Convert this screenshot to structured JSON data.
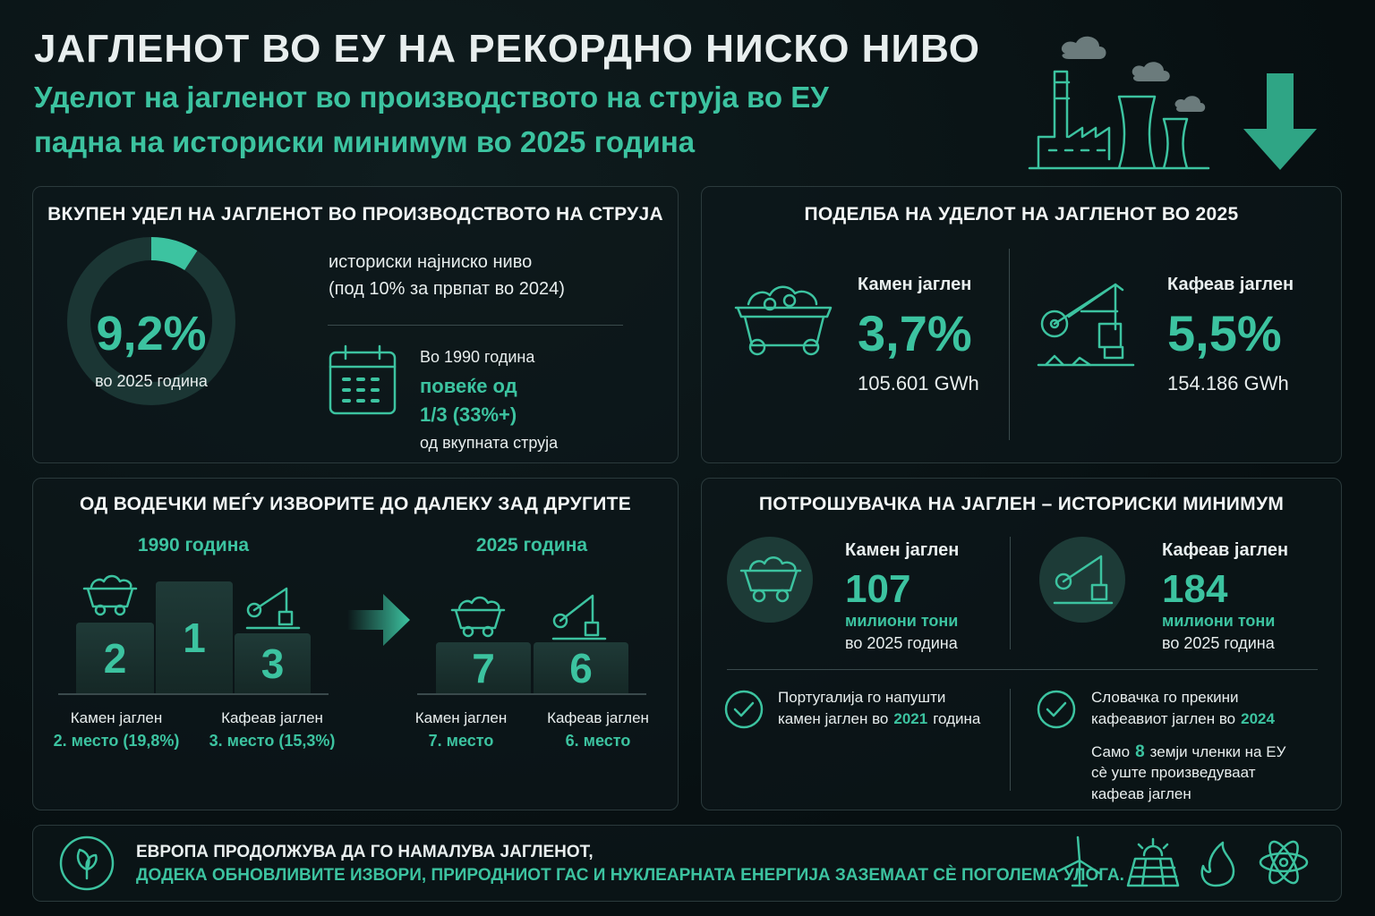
{
  "header": {
    "title": "ЈАГЛЕНОТ ВО ЕУ НА РЕКОРДНО НИСКО НИВО",
    "subtitle_line1": "Уделот на јагленот во производството на струја во ЕУ",
    "subtitle_line2": "падна на историски минимум во 2025 година"
  },
  "total_share": {
    "title": "ВКУПЕН УДЕЛ НА ЈАГЛЕНОТ ВО ПРОИЗВОДСТВОТО НА СТРУЈА",
    "donut": {
      "value": 9.2,
      "label": "9,2%",
      "caption": "во 2025 година"
    },
    "note_line1": "историски најниско ниво",
    "note_line2": "(под 10% за првпат во 2024)",
    "history_line1": "Во 1990 година",
    "history_highlight1": "повеќе од",
    "history_highlight2": "1/3 (33%+)",
    "history_line3": "од вкупната струја"
  },
  "split": {
    "title": "ПОДЕЛБА НА УДЕЛОТ НА ЈАГЛЕНОТ ВО 2025",
    "items": [
      {
        "name": "Камен јаглен",
        "share": "3,7%",
        "energy": "105.601 GWh"
      },
      {
        "name": "Кафеав јаглен",
        "share": "5,5%",
        "energy": "154.186 GWh"
      }
    ]
  },
  "ranking": {
    "title": "ОД ВОДЕЧКИ МЕЃУ ИЗВОРИТЕ ДО ДАЛЕКУ ЗАД ДРУГИТЕ",
    "years": [
      {
        "label": "1990 година",
        "places": [
          "2",
          "1",
          "3"
        ],
        "items": [
          {
            "name": "Камен јаглен",
            "rank": "2. место (19,8%)"
          },
          {
            "name": "Кафеав јаглен",
            "rank": "3. место (15,3%)"
          }
        ]
      },
      {
        "label": "2025 година",
        "places": [
          "7",
          "6"
        ],
        "items": [
          {
            "name": "Камен јаглен",
            "rank": "7. место"
          },
          {
            "name": "Кафеав јаглен",
            "rank": "6. место"
          }
        ]
      }
    ]
  },
  "consumption": {
    "title": "ПОТРОШУВАЧКА НА ЈАГЛЕН – ИСТОРИСКИ МИНИМУМ",
    "items": [
      {
        "name": "Камен јаглен",
        "value": "107",
        "unit": "милиони тони",
        "caption": "во 2025 година"
      },
      {
        "name": "Кафеав јаглен",
        "value": "184",
        "unit": "милиони тони",
        "caption": "во 2025 година"
      }
    ],
    "notes": [
      {
        "line1": "Португалија го напушти",
        "line2_start": "камен јаглен во",
        "highlight": "2021",
        "line2_end": "година"
      },
      {
        "line1": "Словачка го прекини",
        "line2_start": "кафеавиот јаглен во",
        "highlight": "2024",
        "line2_end": ""
      }
    ],
    "extra": {
      "start": "Само",
      "highlight": "8",
      "end": "земји членки на ЕУ",
      "line2": "сè уште произведуваат",
      "line3": "кафеав јаглен"
    }
  },
  "footer": {
    "line1": "ЕВРОПА ПРОДОЛЖУВА ДА ГО НАМАЛУВА ЈАГЛЕНОТ,",
    "line2": "ДОДЕКА ОБНОВЛИВИТЕ ИЗВОРИ, ПРИРОДНИОТ ГАС И НУКЛЕАРНАТА ЕНЕРГИЈА ЗАЗЕМААТ СÈ ПОГОЛЕМА УЛОГА."
  }
}
